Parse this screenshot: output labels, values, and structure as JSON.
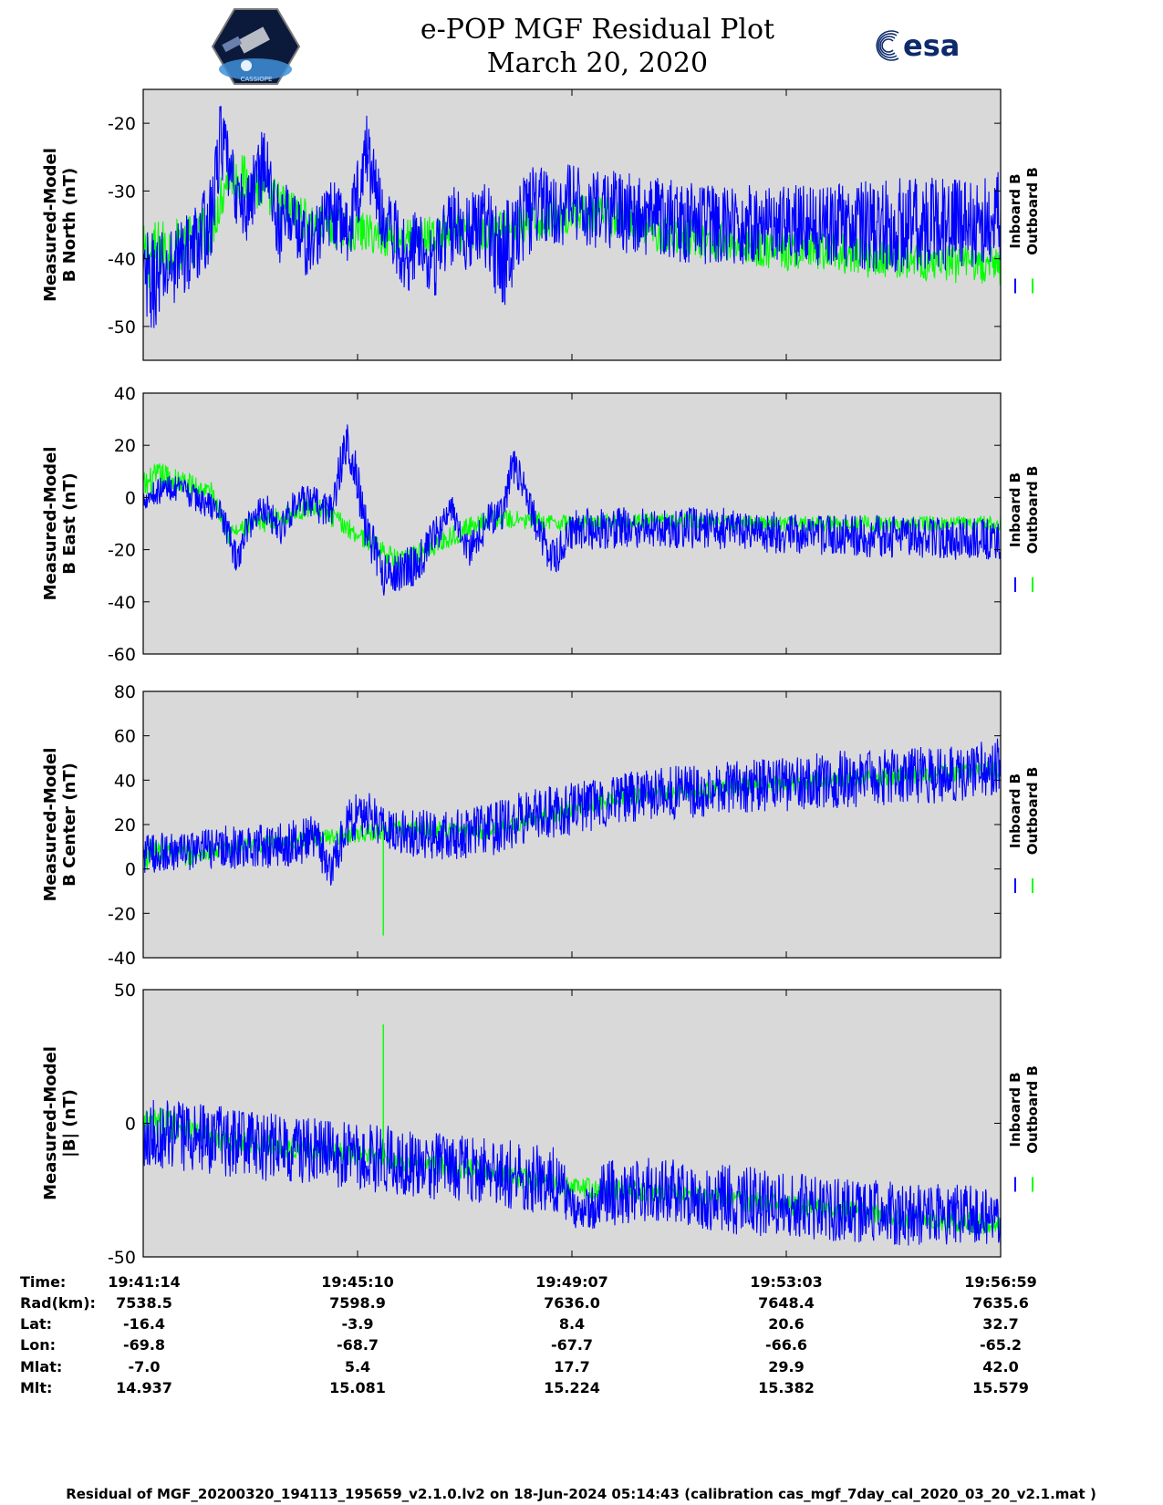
{
  "header": {
    "title_line1": "e-POP MGF Residual Plot",
    "title_line2": "March 20, 2020",
    "esa_logo_text": "esa",
    "cassiope_logo_text": "CASSIOPE"
  },
  "colors": {
    "plot_bg": "#d9d9d9",
    "inboard": "#0000ff",
    "outboard": "#00ff00"
  },
  "legend": {
    "inboard": "Inboard B",
    "outboard": "Outboard B"
  },
  "chart_data": [
    {
      "type": "line",
      "ylabel_line1": "Measured-Model",
      "ylabel_line2": "B North (nT)",
      "ylim": [
        -55,
        -15
      ],
      "yticks": [
        -20,
        -30,
        -40,
        -50
      ],
      "ytick_labels": [
        "-20",
        "-30",
        "-40",
        "-50"
      ],
      "x_ticks": [
        "19:41:14",
        "19:45:10",
        "19:49:07",
        "19:53:03",
        "19:56:59"
      ],
      "series": [
        {
          "name": "Inboard B",
          "x": [
            0,
            0.02,
            0.04,
            0.06,
            0.08,
            0.09,
            0.1,
            0.11,
            0.12,
            0.14,
            0.16,
            0.17,
            0.19,
            0.2,
            0.22,
            0.24,
            0.26,
            0.28,
            0.3,
            0.31,
            0.32,
            0.34,
            0.36,
            0.38,
            0.4,
            0.42,
            0.44,
            0.46,
            0.5,
            0.55,
            0.6,
            0.65,
            0.7,
            0.75,
            0.8,
            0.85,
            0.9,
            0.95,
            1.0
          ],
          "mean": [
            -44,
            -43,
            -40,
            -38,
            -34,
            -22,
            -27,
            -31,
            -33,
            -25,
            -36,
            -33,
            -38,
            -37,
            -33,
            -36,
            -24,
            -34,
            -38,
            -40,
            -37,
            -40,
            -35,
            -36,
            -35,
            -40,
            -34,
            -32,
            -32,
            -33,
            -34,
            -35,
            -35,
            -35,
            -35,
            -35,
            -35,
            -35,
            -34
          ],
          "amplitude": [
            8,
            7,
            6,
            6,
            6,
            6,
            5,
            5,
            5,
            6,
            6,
            5,
            5,
            5,
            5,
            5,
            6,
            5,
            6,
            5,
            5,
            6,
            6,
            6,
            7,
            8,
            7,
            6,
            6,
            6,
            6,
            6,
            6,
            6,
            6,
            7,
            7,
            7,
            7
          ]
        },
        {
          "name": "Outboard B",
          "x": [
            0,
            0.02,
            0.04,
            0.06,
            0.08,
            0.1,
            0.2,
            0.3,
            0.4,
            0.45,
            0.5,
            0.55,
            0.6,
            0.65,
            0.7,
            0.75,
            0.8,
            0.85,
            0.9,
            0.95,
            1.0
          ],
          "mean": [
            -40,
            -39,
            -38,
            -37,
            -35,
            -27,
            -35,
            -37,
            -36,
            -35,
            -33,
            -34,
            -36,
            -37,
            -38,
            -39,
            -39,
            -40,
            -40,
            -41,
            -41
          ],
          "amplitude": [
            5,
            5,
            4,
            4,
            4,
            4,
            3,
            3,
            3,
            3,
            3,
            3,
            3,
            3,
            3,
            3,
            3,
            3,
            3,
            3,
            3
          ]
        }
      ]
    },
    {
      "type": "line",
      "ylabel_line1": "Measured-Model",
      "ylabel_line2": "B East (nT)",
      "ylim": [
        -60,
        40
      ],
      "yticks": [
        40,
        20,
        0,
        -20,
        -40,
        -60
      ],
      "ytick_labels": [
        "40",
        "20",
        "0",
        "-20",
        "-40",
        "-60"
      ],
      "x_ticks": [
        "19:41:14",
        "19:45:10",
        "19:49:07",
        "19:53:03",
        "19:56:59"
      ],
      "series": [
        {
          "name": "Inboard B",
          "x": [
            0,
            0.03,
            0.05,
            0.07,
            0.09,
            0.1,
            0.11,
            0.12,
            0.14,
            0.16,
            0.18,
            0.2,
            0.22,
            0.23,
            0.24,
            0.26,
            0.28,
            0.3,
            0.32,
            0.34,
            0.36,
            0.38,
            0.4,
            0.42,
            0.43,
            0.44,
            0.46,
            0.48,
            0.5,
            0.55,
            0.6,
            0.65,
            0.7,
            0.75,
            0.8,
            0.85,
            0.9,
            0.95,
            1.0
          ],
          "mean": [
            0,
            4,
            2,
            -2,
            -5,
            -15,
            -25,
            -12,
            -3,
            -12,
            -1,
            -3,
            -5,
            12,
            22,
            -12,
            -30,
            -28,
            -25,
            -15,
            -5,
            -20,
            -10,
            -5,
            12,
            8,
            -12,
            -25,
            -12,
            -12,
            -11,
            -12,
            -12,
            -14,
            -14,
            -15,
            -15,
            -16,
            -16
          ],
          "amplitude": [
            5,
            5,
            5,
            5,
            5,
            6,
            6,
            6,
            7,
            7,
            6,
            7,
            7,
            8,
            10,
            9,
            8,
            8,
            8,
            7,
            6,
            7,
            7,
            7,
            8,
            6,
            7,
            8,
            8,
            8,
            8,
            8,
            8,
            8,
            8,
            8,
            8,
            8,
            8
          ]
        },
        {
          "name": "Outboard B",
          "x": [
            0,
            0.02,
            0.04,
            0.06,
            0.08,
            0.1,
            0.2,
            0.3,
            0.4,
            0.5,
            0.55,
            0.6,
            0.65,
            0.7,
            0.75,
            0.8,
            0.85,
            0.9,
            0.95,
            1.0
          ],
          "mean": [
            4,
            8,
            6,
            4,
            2,
            -14,
            -3,
            -25,
            -8,
            -10,
            -9,
            -9,
            -9,
            -10,
            -10,
            -10,
            -10,
            -10,
            -10,
            -10
          ],
          "amplitude": [
            6,
            6,
            5,
            5,
            4,
            4,
            4,
            4,
            4,
            3,
            3,
            3,
            3,
            3,
            3,
            3,
            3,
            3,
            3,
            3
          ]
        }
      ]
    },
    {
      "type": "line",
      "ylabel_line1": "Measured-Model",
      "ylabel_line2": "B Center (nT)",
      "ylim": [
        -40,
        80
      ],
      "yticks": [
        80,
        60,
        40,
        20,
        0,
        -20,
        -40
      ],
      "ytick_labels": [
        "80",
        "60",
        "40",
        "20",
        "0",
        "-20",
        "-40"
      ],
      "x_ticks": [
        "19:41:14",
        "19:45:10",
        "19:49:07",
        "19:53:03",
        "19:56:59"
      ],
      "spike": {
        "series": "Outboard B",
        "x": 0.28,
        "value": -30
      },
      "series": [
        {
          "name": "Inboard B",
          "x": [
            0,
            0.05,
            0.1,
            0.15,
            0.2,
            0.22,
            0.24,
            0.26,
            0.28,
            0.3,
            0.35,
            0.4,
            0.45,
            0.5,
            0.55,
            0.6,
            0.65,
            0.7,
            0.75,
            0.8,
            0.85,
            0.9,
            0.95,
            1.0
          ],
          "mean": [
            7,
            8,
            10,
            10,
            14,
            0,
            22,
            25,
            20,
            17,
            15,
            17,
            24,
            27,
            31,
            34,
            35,
            37,
            38,
            40,
            41,
            42,
            43,
            46
          ],
          "amplitude": [
            9,
            9,
            10,
            10,
            11,
            9,
            11,
            11,
            10,
            11,
            11,
            12,
            12,
            12,
            12,
            12,
            12,
            12,
            12,
            13,
            13,
            13,
            13,
            13
          ]
        },
        {
          "name": "Outboard B",
          "x": [
            0,
            0.03,
            0.05,
            0.1,
            0.2,
            0.3,
            0.4,
            0.5,
            0.55,
            0.6,
            0.7,
            0.8,
            0.9,
            1.0
          ],
          "mean": [
            6,
            8,
            6,
            9,
            14,
            18,
            17,
            27,
            32,
            34,
            37,
            40,
            42,
            45
          ],
          "amplitude": [
            7,
            6,
            5,
            4,
            4,
            4,
            4,
            4,
            4,
            4,
            4,
            4,
            4,
            4
          ]
        }
      ]
    },
    {
      "type": "line",
      "ylabel_line1": "Measured-Model",
      "ylabel_line2": "|B| (nT)",
      "ylim": [
        -50,
        50
      ],
      "yticks": [
        50,
        0,
        -50
      ],
      "ytick_labels": [
        "50",
        "0",
        "-50"
      ],
      "x_ticks": [
        "19:41:14",
        "19:45:10",
        "19:49:07",
        "19:53:03",
        "19:56:59"
      ],
      "spike": {
        "series": "Outboard B",
        "x": 0.28,
        "value": 37
      },
      "series": [
        {
          "name": "Inboard B",
          "x": [
            0,
            0.1,
            0.2,
            0.3,
            0.4,
            0.48,
            0.5,
            0.51,
            0.52,
            0.54,
            0.6,
            0.7,
            0.8,
            0.9,
            1.0
          ],
          "mean": [
            -3,
            -7,
            -11,
            -14,
            -18,
            -22,
            -30,
            -35,
            -30,
            -25,
            -26,
            -29,
            -32,
            -34,
            -35
          ],
          "amplitude": [
            13,
            13,
            13,
            13,
            13,
            13,
            10,
            5,
            10,
            13,
            13,
            13,
            12,
            12,
            11
          ]
        },
        {
          "name": "Outboard B",
          "x": [
            0,
            0.04,
            0.08,
            0.2,
            0.3,
            0.4,
            0.5,
            0.6,
            0.7,
            0.8,
            0.9,
            1.0
          ],
          "mean": [
            -1,
            0,
            -6,
            -10,
            -14,
            -18,
            -24,
            -26,
            -29,
            -32,
            -36,
            -38
          ],
          "amplitude": [
            7,
            6,
            4,
            4,
            4,
            4,
            4,
            4,
            4,
            4,
            4,
            4
          ]
        }
      ]
    }
  ],
  "orbit_table": {
    "row_labels": [
      "Time:",
      "Rad(km):",
      "Lat:",
      "Lon:",
      "Mlat:",
      "Mlt:"
    ],
    "columns": [
      [
        "19:41:14",
        "7538.5",
        "-16.4",
        "-69.8",
        "-7.0",
        "14.937"
      ],
      [
        "19:45:10",
        "7598.9",
        "-3.9",
        "-68.7",
        "5.4",
        "15.081"
      ],
      [
        "19:49:07",
        "7636.0",
        "8.4",
        "-67.7",
        "17.7",
        "15.224"
      ],
      [
        "19:53:03",
        "7648.4",
        "20.6",
        "-66.6",
        "29.9",
        "15.382"
      ],
      [
        "19:56:59",
        "7635.6",
        "32.7",
        "-65.2",
        "42.0",
        "15.579"
      ]
    ]
  },
  "footer": "Residual of MGF_20200320_194113_195659_v2.1.0.lv2 on 18-Jun-2024 05:14:43 (calibration cas_mgf_7day_cal_2020_03_20_v2.1.mat )"
}
